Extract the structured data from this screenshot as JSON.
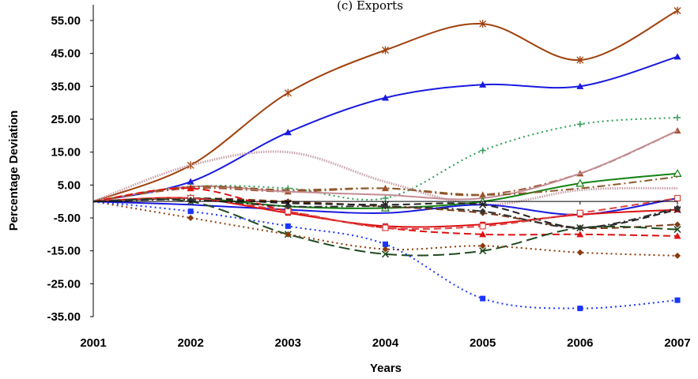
{
  "chart_data": {
    "type": "line",
    "title": "(c) Exports",
    "xlabel": "Years",
    "ylabel": "Percentage Deviation",
    "x": [
      "2001",
      "2002",
      "2003",
      "2004",
      "2005",
      "2006",
      "2007"
    ],
    "ylim": [
      -35,
      60
    ],
    "yticks": [
      "55.00",
      "45.00",
      "35.00",
      "25.00",
      "15.00",
      "5.00",
      "-5.00",
      "-15.00",
      "-25.00",
      "-35.00"
    ],
    "ytick_values": [
      55,
      45,
      35,
      25,
      15,
      5,
      -5,
      -15,
      -25,
      -35
    ],
    "grid": false,
    "legend": "none",
    "series": [
      {
        "color": "#a0410d",
        "dash": "solid",
        "marker": "star",
        "values": [
          0,
          11,
          33,
          46,
          54,
          43,
          58
        ]
      },
      {
        "color": "#1a1adf",
        "dash": "solid",
        "marker": "triangle",
        "values": [
          0,
          6,
          21,
          31.5,
          35.5,
          35,
          44
        ]
      },
      {
        "color": "#2e9d57",
        "dash": "dot",
        "marker": "plus",
        "values": [
          0,
          4.5,
          4,
          1,
          15.5,
          23.5,
          25.5
        ]
      },
      {
        "color": "#a0522d",
        "dash": "dashdot",
        "marker": "triangle",
        "values": [
          0,
          4,
          3,
          4,
          2,
          8.5,
          21.5
        ]
      },
      {
        "color": "#c8a0a8",
        "dash": "solid",
        "marker": "none",
        "values": [
          0,
          11,
          15,
          6,
          -1,
          3.5,
          4
        ]
      },
      {
        "color": "#c48b95",
        "dash": "solid",
        "marker": "none",
        "values": [
          0,
          4.5,
          3,
          2,
          1,
          8.5,
          21.5
        ]
      },
      {
        "color": "#148214",
        "dash": "solid",
        "marker": "triangle-open",
        "values": [
          0,
          1,
          -1.5,
          -2,
          0,
          5.5,
          8.5
        ]
      },
      {
        "color": "#8b5a2b",
        "dash": "dashdot",
        "marker": "none",
        "values": [
          0,
          4.5,
          3.5,
          4,
          2,
          4,
          7.5
        ]
      },
      {
        "color": "#1a1adf",
        "dash": "solid",
        "marker": "none",
        "values": [
          0,
          -1,
          -2.5,
          -3.5,
          -1,
          -4,
          1
        ]
      },
      {
        "color": "#dd1111",
        "dash": "solid",
        "marker": "square",
        "values": [
          0,
          1,
          -3.5,
          -7.5,
          -7,
          -4,
          -2.5
        ]
      },
      {
        "color": "#7b3d1a",
        "dash": "dash",
        "marker": "diamond",
        "values": [
          0,
          1,
          0,
          -1.5,
          -3.5,
          -8,
          -7
        ]
      },
      {
        "color": "#222222",
        "dash": "dash",
        "marker": "x",
        "values": [
          0,
          1,
          -0.5,
          -1,
          -1,
          -8,
          -2.5
        ]
      },
      {
        "color": "#dd1111",
        "dash": "dash",
        "marker": "triangle",
        "values": [
          0,
          4,
          -3,
          -8,
          -10,
          -10,
          -10.5
        ]
      },
      {
        "color": "#dd4444",
        "dash": "dash",
        "marker": "square-open",
        "values": [
          0,
          1,
          -3,
          -8,
          -7.5,
          -3.5,
          1
        ]
      },
      {
        "color": "#1f4a1f",
        "dash": "longdash",
        "marker": "x",
        "values": [
          0,
          0,
          -10,
          -16,
          -15,
          -8,
          -8.5
        ]
      },
      {
        "color": "#8b3a0a",
        "dash": "dot",
        "marker": "diamond",
        "values": [
          0,
          -5,
          -10,
          -14.5,
          -13.5,
          -15.5,
          -16.5
        ]
      },
      {
        "color": "#1a35ff",
        "dash": "dot",
        "marker": "square",
        "values": [
          0,
          -3,
          -7.5,
          -13,
          -29.5,
          -32.5,
          -30
        ]
      },
      {
        "color": "#333333",
        "dash": "dashdot",
        "marker": "diamond",
        "values": [
          0,
          0.5,
          -1.5,
          -1.5,
          -3,
          -8,
          -2
        ]
      }
    ]
  }
}
